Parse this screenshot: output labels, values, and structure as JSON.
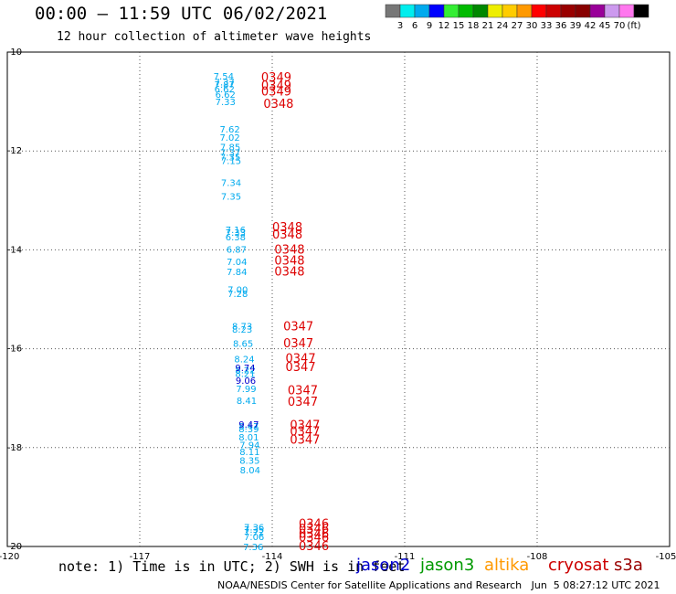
{
  "header": {
    "title": "00:00 – 11:59 UTC 06/02/2021",
    "subtitle": "12 hour collection of altimeter wave heights"
  },
  "footer": {
    "note": "note: 1) Time is in UTC; 2) SWH is in feet",
    "credit": "NOAA/NESDIS Center for Satellite Applications and Research   Jun  5 08:27:12 UTC 2021",
    "satellites": [
      {
        "name": "jason2",
        "color": "#0000cc"
      },
      {
        "name": "jason3",
        "color": "#009900"
      },
      {
        "name": "altika",
        "color": "#ff9900"
      },
      {
        "name": "cryosat",
        "color": "#cc0000"
      },
      {
        "name": "s3a",
        "color": "#990000"
      }
    ]
  },
  "colorbar": {
    "colors": [
      "#777777",
      "#00eeee",
      "#00aaee",
      "#0000ff",
      "#33ee33",
      "#00bb00",
      "#008800",
      "#eeee00",
      "#ffcc00",
      "#ff9900",
      "#ff0000",
      "#cc0000",
      "#990000",
      "#880000",
      "#990099",
      "#cc99ee",
      "#ff77ee",
      "#000000"
    ],
    "tick_labels": [
      "3",
      "6",
      "9",
      "12",
      "15",
      "18",
      "21",
      "24",
      "27",
      "30",
      "33",
      "36",
      "39",
      "42",
      "45",
      "70",
      "(ft)"
    ]
  },
  "chart_data": {
    "type": "scatter",
    "title": "00:00 – 11:59 UTC 06/02/2021",
    "subtitle": "12 hour collection of altimeter wave heights",
    "xlabel": "",
    "ylabel": "",
    "xlim": [
      -120,
      -105
    ],
    "ylim": [
      -20,
      -10
    ],
    "x_ticks": [
      -117,
      -114,
      -111,
      -108
    ],
    "x_tick_labels": [
      "-117",
      "-114",
      "-111",
      "-108"
    ],
    "x_edge_labels": [
      "-120",
      "-105"
    ],
    "y_ticks": [
      -10,
      -12,
      -14,
      -16,
      -18,
      -20
    ],
    "y_tick_labels": [
      "-10",
      "-12",
      "-14",
      "-16",
      "-18",
      "-20"
    ],
    "y_corner_label": "-20",
    "grid": true,
    "series": [
      {
        "name": "swh",
        "color": "#00aaee",
        "points": [
          {
            "x": -114.87,
            "y": -10.48,
            "label": "7.54"
          },
          {
            "x": -114.85,
            "y": -10.6,
            "label": "7.37"
          },
          {
            "x": -114.85,
            "y": -10.65,
            "label": "7.87"
          },
          {
            "x": -114.85,
            "y": -10.74,
            "label": "6.62"
          },
          {
            "x": -114.83,
            "y": -10.85,
            "label": "6.62"
          },
          {
            "x": -114.83,
            "y": -11.0,
            "label": "7.33"
          },
          {
            "x": -114.73,
            "y": -11.55,
            "label": "7.62"
          },
          {
            "x": -114.73,
            "y": -11.72,
            "label": "7.02"
          },
          {
            "x": -114.72,
            "y": -11.91,
            "label": "7.85"
          },
          {
            "x": -114.72,
            "y": -12.02,
            "label": "7.37"
          },
          {
            "x": -114.72,
            "y": -12.12,
            "label": "7.35"
          },
          {
            "x": -114.7,
            "y": -12.19,
            "label": "7.15"
          },
          {
            "x": -114.7,
            "y": -12.63,
            "label": "7.34"
          },
          {
            "x": -114.7,
            "y": -12.91,
            "label": "7.35"
          },
          {
            "x": -114.6,
            "y": -13.59,
            "label": "7.16"
          },
          {
            "x": -114.6,
            "y": -13.64,
            "label": "7.33"
          },
          {
            "x": -114.6,
            "y": -13.73,
            "label": "6.38"
          },
          {
            "x": -114.58,
            "y": -13.98,
            "label": "6.87"
          },
          {
            "x": -114.57,
            "y": -14.23,
            "label": "7.04"
          },
          {
            "x": -114.57,
            "y": -14.44,
            "label": "7.84"
          },
          {
            "x": -114.55,
            "y": -14.8,
            "label": "7.00"
          },
          {
            "x": -114.55,
            "y": -14.88,
            "label": "7.28"
          },
          {
            "x": -114.45,
            "y": -15.54,
            "label": "8.73"
          },
          {
            "x": -114.45,
            "y": -15.6,
            "label": "8.23"
          },
          {
            "x": -114.43,
            "y": -15.89,
            "label": "8.65"
          },
          {
            "x": -114.4,
            "y": -16.2,
            "label": "8.24"
          },
          {
            "x": -114.38,
            "y": -16.42,
            "label": "8.22"
          },
          {
            "x": -114.38,
            "y": -16.5,
            "label": "8.21"
          },
          {
            "x": -114.36,
            "y": -16.8,
            "label": "7.99"
          },
          {
            "x": -114.35,
            "y": -17.04,
            "label": "8.41"
          },
          {
            "x": -114.3,
            "y": -17.56,
            "label": "8.47"
          },
          {
            "x": -114.3,
            "y": -17.62,
            "label": "8.39"
          },
          {
            "x": -114.3,
            "y": -17.78,
            "label": "8.01"
          },
          {
            "x": -114.28,
            "y": -17.94,
            "label": "7.94"
          },
          {
            "x": -114.28,
            "y": -18.08,
            "label": "8.11"
          },
          {
            "x": -114.28,
            "y": -18.25,
            "label": "8.35"
          },
          {
            "x": -114.27,
            "y": -18.45,
            "label": "8.04"
          },
          {
            "x": -114.18,
            "y": -19.6,
            "label": "7.36"
          },
          {
            "x": -114.18,
            "y": -19.65,
            "label": "7.35"
          },
          {
            "x": -114.18,
            "y": -19.7,
            "label": "7.72"
          },
          {
            "x": -114.18,
            "y": -19.8,
            "label": "7.06"
          },
          {
            "x": -114.2,
            "y": -20.0,
            "label": "7.36"
          }
        ]
      },
      {
        "name": "swh_jason2",
        "color": "#0000cc",
        "points": [
          {
            "x": -114.38,
            "y": -16.38,
            "label": "9.74"
          },
          {
            "x": -114.37,
            "y": -16.64,
            "label": "9.06"
          },
          {
            "x": -114.3,
            "y": -17.52,
            "label": "9.47"
          }
        ]
      },
      {
        "name": "pass",
        "color": "#dd0000",
        "points": [
          {
            "x": -114.25,
            "y": -10.52,
            "label": "0349"
          },
          {
            "x": -114.25,
            "y": -10.68,
            "label": "0349"
          },
          {
            "x": -114.25,
            "y": -10.8,
            "label": "0349"
          },
          {
            "x": -114.2,
            "y": -11.05,
            "label": "0348"
          },
          {
            "x": -114.0,
            "y": -13.55,
            "label": "0348"
          },
          {
            "x": -114.0,
            "y": -13.7,
            "label": "0348"
          },
          {
            "x": -113.95,
            "y": -14.0,
            "label": "0348"
          },
          {
            "x": -113.95,
            "y": -14.22,
            "label": "0348"
          },
          {
            "x": -113.95,
            "y": -14.45,
            "label": "0348"
          },
          {
            "x": -113.75,
            "y": -15.55,
            "label": "0347"
          },
          {
            "x": -113.75,
            "y": -15.9,
            "label": "0347"
          },
          {
            "x": -113.7,
            "y": -16.2,
            "label": "0347"
          },
          {
            "x": -113.7,
            "y": -16.38,
            "label": "0347"
          },
          {
            "x": -113.65,
            "y": -16.85,
            "label": "0347"
          },
          {
            "x": -113.65,
            "y": -17.08,
            "label": "0347"
          },
          {
            "x": -113.6,
            "y": -17.55,
            "label": "0347"
          },
          {
            "x": -113.6,
            "y": -17.68,
            "label": "0347"
          },
          {
            "x": -113.6,
            "y": -17.85,
            "label": "0347"
          },
          {
            "x": -113.4,
            "y": -19.55,
            "label": "0346"
          },
          {
            "x": -113.4,
            "y": -19.65,
            "label": "0346"
          },
          {
            "x": -113.4,
            "y": -19.75,
            "label": "0346"
          },
          {
            "x": -113.4,
            "y": -19.82,
            "label": "0346"
          },
          {
            "x": -113.4,
            "y": -20.0,
            "label": "0346"
          }
        ]
      }
    ]
  }
}
